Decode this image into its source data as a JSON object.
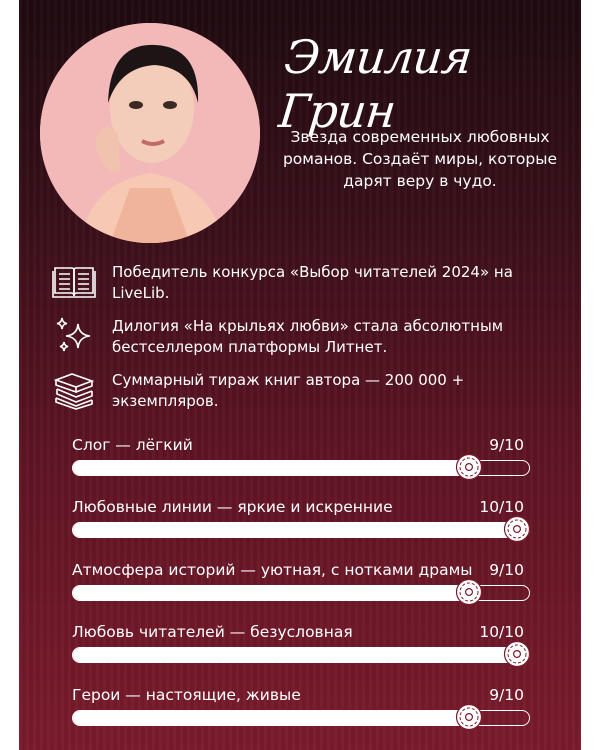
{
  "author": {
    "name": "Эмилия Грин",
    "tagline": "Звезда современных любовных романов. Создаёт миры, которые дарят веру в чудо."
  },
  "facts": [
    {
      "icon": "open-book-icon",
      "text": "Победитель конкурса «Выбор читателей 2024» на LiveLib."
    },
    {
      "icon": "sparkles-icon",
      "text": "Дилогия «На крыльях любви» стала абсолютным бестселлером платформы Литнет."
    },
    {
      "icon": "book-stack-icon",
      "text": "Суммарный тираж книг автора — 200 000 + экземпляров."
    }
  ],
  "ratings": [
    {
      "label": "Слог — лёгкий",
      "score": "9/10",
      "value": 9,
      "max": 10
    },
    {
      "label": "Любовные линии — яркие и искренние",
      "score": "10/10",
      "value": 10,
      "max": 10
    },
    {
      "label": "Атмосфера историй — уютная, с нотками драмы",
      "score": "9/10",
      "value": 9,
      "max": 10
    },
    {
      "label": "Любовь читателей — безусловная",
      "score": "10/10",
      "value": 10,
      "max": 10
    },
    {
      "label": "Герои — настоящие, живые",
      "score": "9/10",
      "value": 9,
      "max": 10
    }
  ],
  "colors": {
    "background_top": "#1e0a10",
    "background_bottom": "#7a1b2c",
    "text": "#ffffff",
    "portrait_bg": "#f2b9b8"
  }
}
